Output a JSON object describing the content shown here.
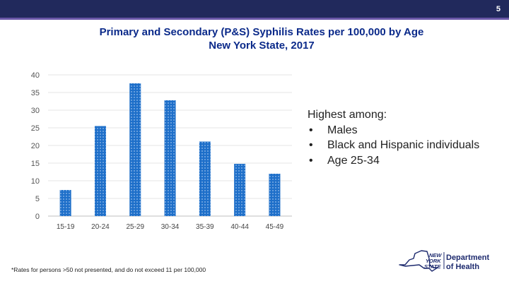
{
  "slide": {
    "number": "5"
  },
  "chart_data": {
    "type": "bar",
    "title": "Primary and Secondary (P&S) Syphilis Rates per 100,000 by Age",
    "subtitle": "New York State, 2017",
    "categories": [
      "15-19",
      "20-24",
      "25-29",
      "30-34",
      "35-39",
      "40-44",
      "45-49"
    ],
    "values": [
      7.4,
      25.5,
      37.6,
      32.8,
      21.1,
      14.8,
      12.0
    ],
    "xlabel": "",
    "ylabel": "",
    "ylim": [
      0,
      40
    ],
    "yticks": [
      "0",
      "5",
      "10",
      "15",
      "20",
      "25",
      "30",
      "35",
      "40"
    ],
    "grid": true,
    "legend": "none",
    "bar_color": "#1e6fc9"
  },
  "highlights": {
    "heading": "Highest among:",
    "items": [
      "Males",
      "Black and Hispanic individuals",
      "Age 25-34"
    ]
  },
  "footnote": "*Rates for persons >50 not presented, and do not exceed 11 per 100,000",
  "logo": {
    "state_text": [
      "NEW",
      "YORK",
      "STATE"
    ],
    "dept_text": [
      "Department",
      "of Health"
    ]
  },
  "colors": {
    "header": "#21295c",
    "accent": "#6a57a8",
    "title": "#0b2a8a",
    "logo": "#1d2a6e"
  }
}
